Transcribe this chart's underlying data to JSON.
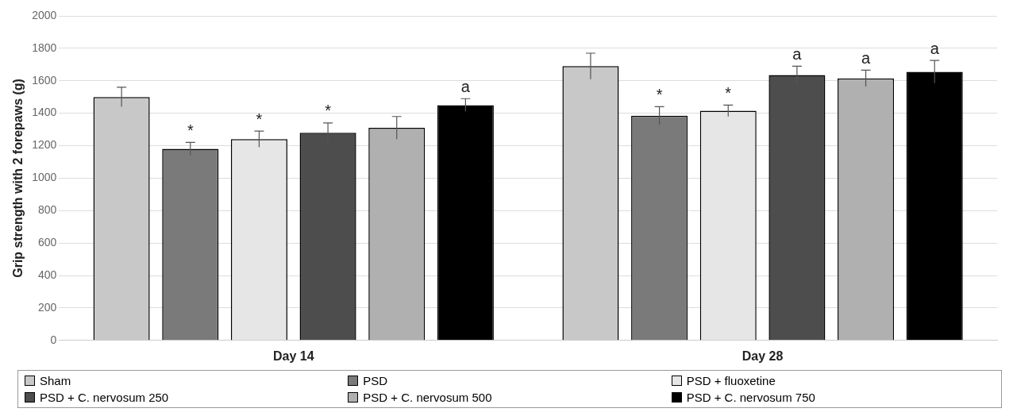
{
  "chart_data": {
    "type": "bar",
    "ylabel": "Grip strength with 2 forepaws (g)",
    "categories": [
      "Day 14",
      "Day 28"
    ],
    "series": [
      {
        "name": "Sham",
        "color": "#c8c8c8",
        "values": [
          1500,
          1690
        ],
        "errors": [
          60,
          80
        ],
        "value_labels": [
          null,
          null
        ]
      },
      {
        "name": "PSD",
        "color": "#7a7a7a",
        "values": [
          1180,
          1385
        ],
        "errors": [
          40,
          55
        ],
        "value_labels": [
          "*",
          "*"
        ]
      },
      {
        "name": "PSD + fluoxetine",
        "color": "#e6e6e6",
        "values": [
          1240,
          1415
        ],
        "errors": [
          50,
          35
        ],
        "value_labels": [
          "*",
          "*"
        ]
      },
      {
        "name": "PSD + C. nervosum 250",
        "color": "#4d4d4d",
        "values": [
          1280,
          1635
        ],
        "errors": [
          60,
          55
        ],
        "value_labels": [
          "*",
          "a"
        ]
      },
      {
        "name": "PSD + C. nervosum 500",
        "color": "#b0b0b0",
        "values": [
          1310,
          1615
        ],
        "errors": [
          70,
          50
        ],
        "value_labels": [
          null,
          "a"
        ]
      },
      {
        "name": "PSD + C. nervosum 750",
        "color": "#000000",
        "values": [
          1450,
          1655
        ],
        "errors": [
          40,
          70
        ],
        "value_labels": [
          "a",
          "a"
        ]
      }
    ],
    "ylim": [
      0,
      2000
    ],
    "yticks": [
      0,
      200,
      400,
      600,
      800,
      1000,
      1200,
      1400,
      1600,
      1800,
      2000
    ],
    "grid": "y",
    "legend": "bottom"
  }
}
